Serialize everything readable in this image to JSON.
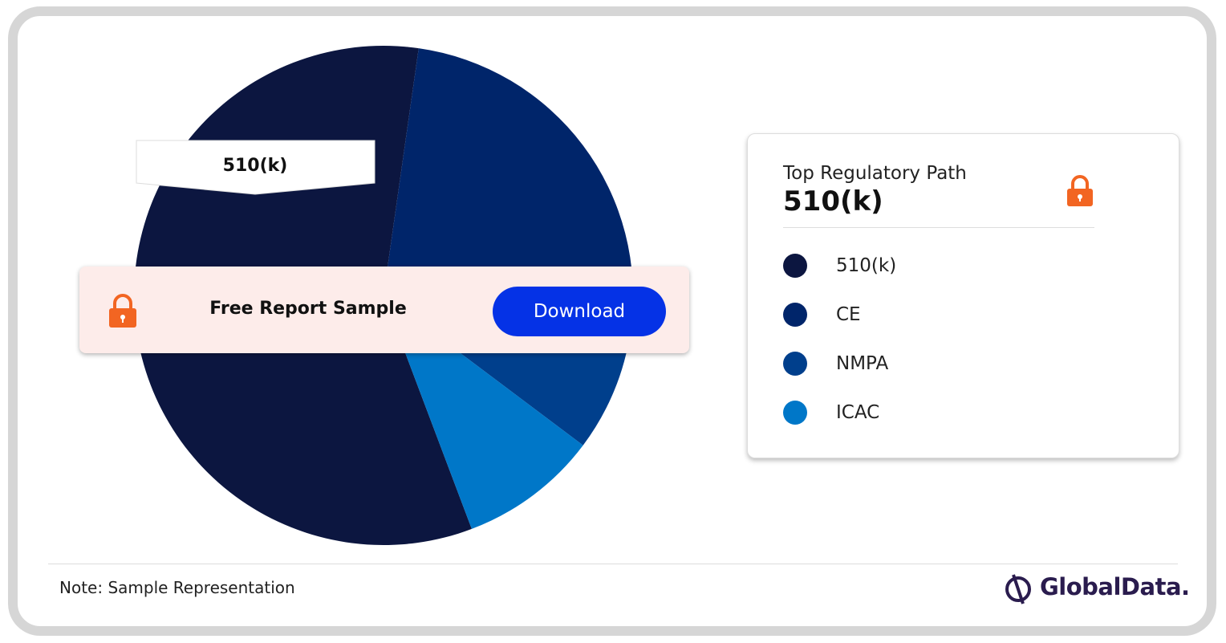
{
  "chart_data": {
    "type": "pie",
    "categories": [
      "510(k)",
      "CE",
      "NMPA",
      "ICAC"
    ],
    "values": [
      58,
      25,
      8,
      9
    ],
    "colors": [
      "#0c1640",
      "#00256a",
      "#003f8c",
      "#0077c8"
    ],
    "summary": {
      "label": "Top Regulatory Path",
      "value": "510(k)"
    }
  },
  "banner": {
    "text": "Free Report Sample",
    "button": "Download"
  },
  "footer": {
    "note": "Note: Sample Representation",
    "brand": "GlobalData."
  }
}
